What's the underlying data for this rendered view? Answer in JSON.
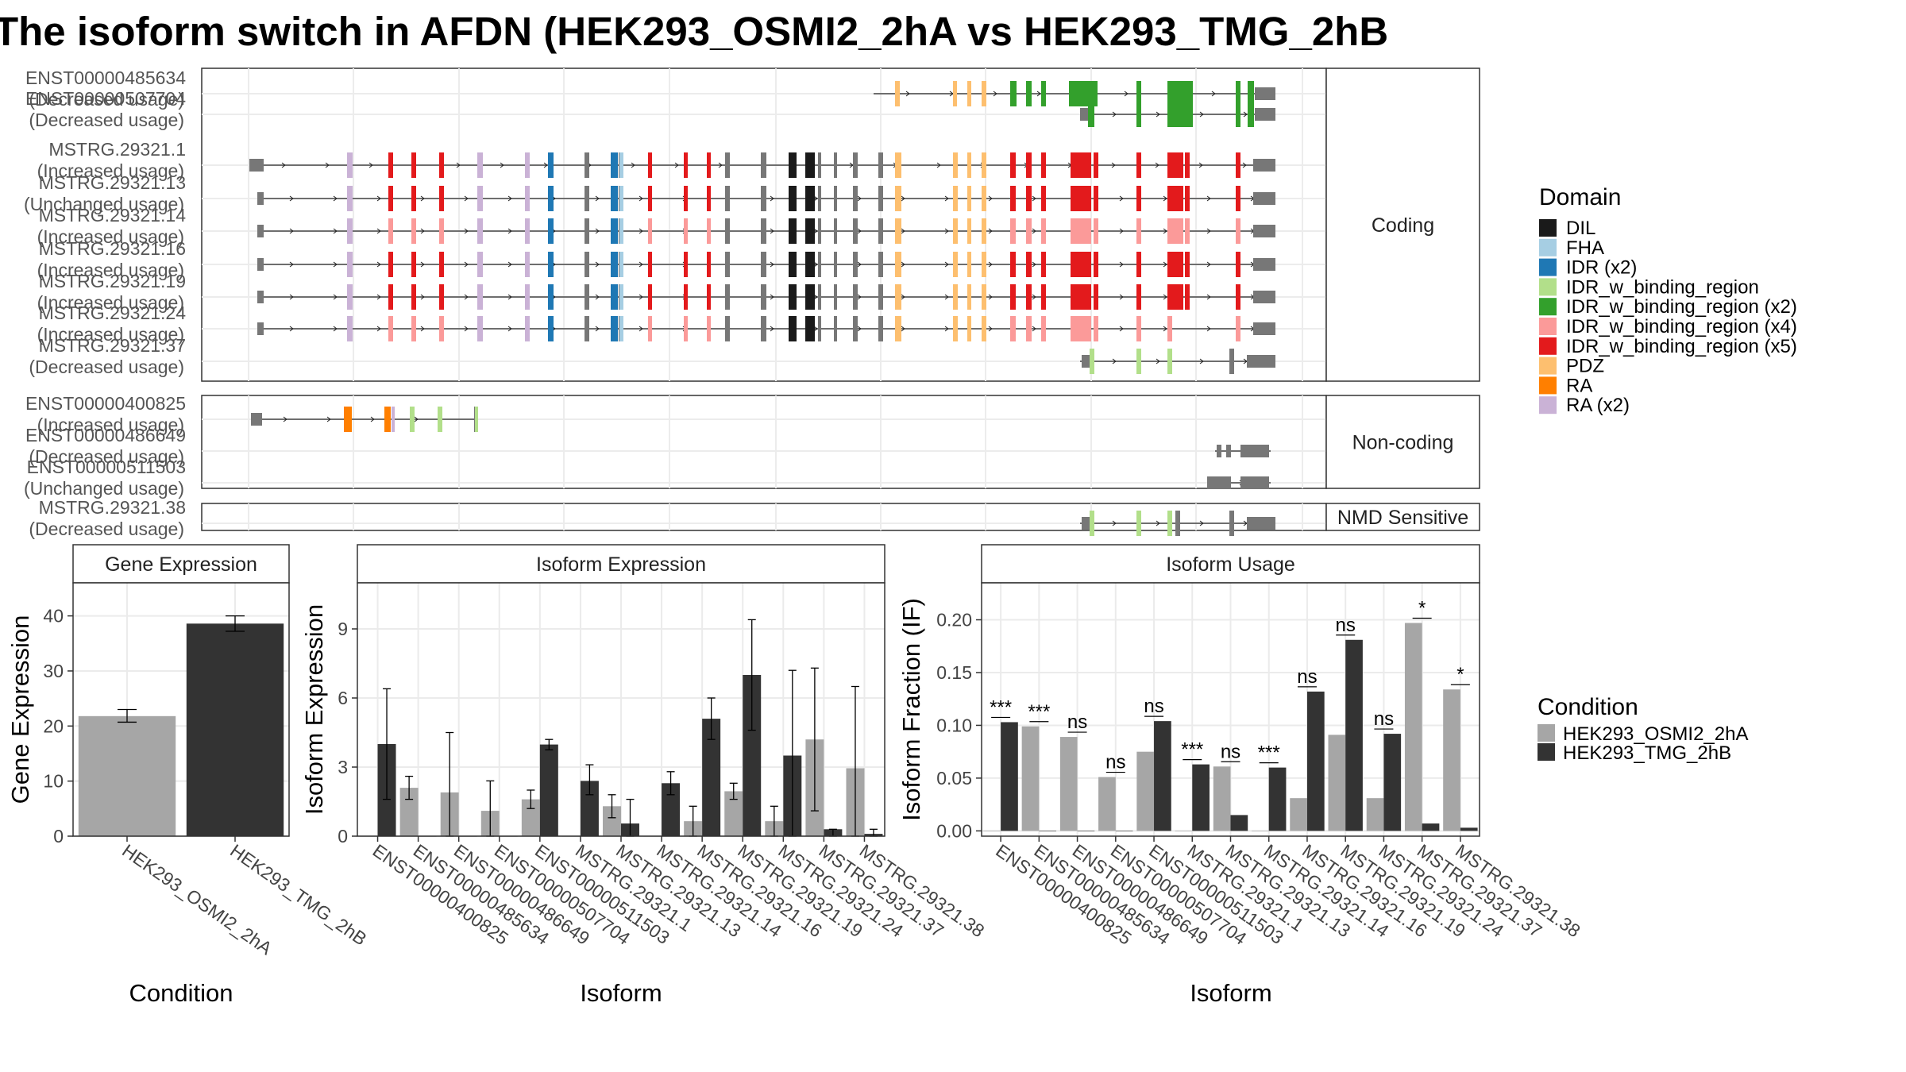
{
  "title": "The isoform switch in AFDN (HEK293_OSMI2_2hA vs HEK293_TMG_2hB",
  "colors": {
    "DIL": "#1a1a1a",
    "FHA": "#a6cee3",
    "IDR_x2": "#1f78b4",
    "IDRb": "#b2df8a",
    "IDRb_x2": "#33a02c",
    "IDRb_x4": "#fb9a99",
    "IDRb_x5": "#e31a1c",
    "PDZ": "#fdbf6f",
    "RA": "#ff7f00",
    "RA_x2": "#cab2d6",
    "other": "#777777",
    "cond_A": "#a6a6a6",
    "cond_B": "#333333"
  },
  "structure": {
    "panels": [
      {
        "label": "Coding",
        "isoforms": [
          {
            "name": "ENST00000485634",
            "usage": "(Decreased usage)"
          },
          {
            "name": "ENST00000507704",
            "usage": "(Decreased usage)"
          },
          {
            "name": "MSTRG.29321.1",
            "usage": "(Increased usage)"
          },
          {
            "name": "MSTRG.29321.13",
            "usage": "(Unchanged usage)"
          },
          {
            "name": "MSTRG.29321.14",
            "usage": "(Increased usage)"
          },
          {
            "name": "MSTRG.29321.16",
            "usage": "(Increased usage)"
          },
          {
            "name": "MSTRG.29321.19",
            "usage": "(Increased usage)"
          },
          {
            "name": "MSTRG.29321.24",
            "usage": "(Increased usage)"
          },
          {
            "name": "MSTRG.29321.37",
            "usage": "(Decreased usage)"
          }
        ]
      },
      {
        "label": "Non-coding",
        "isoforms": [
          {
            "name": "ENST00000400825",
            "usage": "(Increased usage)"
          },
          {
            "name": "ENST00000486649",
            "usage": "(Decreased usage)"
          },
          {
            "name": "ENST00000511503",
            "usage": "(Unchanged usage)"
          }
        ]
      },
      {
        "label": "NMD Sensitive",
        "isoforms": [
          {
            "name": "MSTRG.29321.38",
            "usage": "(Decreased usage)"
          }
        ]
      }
    ]
  },
  "legend_domain": {
    "title": "Domain",
    "items": [
      {
        "label": "DIL",
        "color": "#1a1a1a"
      },
      {
        "label": "FHA",
        "color": "#a6cee3"
      },
      {
        "label": "IDR (x2)",
        "color": "#1f78b4"
      },
      {
        "label": "IDR_w_binding_region",
        "color": "#b2df8a"
      },
      {
        "label": "IDR_w_binding_region (x2)",
        "color": "#33a02c"
      },
      {
        "label": "IDR_w_binding_region (x4)",
        "color": "#fb9a99"
      },
      {
        "label": "IDR_w_binding_region (x5)",
        "color": "#e31a1c"
      },
      {
        "label": "PDZ",
        "color": "#fdbf6f"
      },
      {
        "label": "RA",
        "color": "#ff7f00"
      },
      {
        "label": "RA (x2)",
        "color": "#cab2d6"
      }
    ]
  },
  "legend_condition": {
    "title": "Condition",
    "items": [
      {
        "label": "HEK293_OSMI2_2hA",
        "color": "#a6a6a6"
      },
      {
        "label": "HEK293_TMG_2hB",
        "color": "#333333"
      }
    ]
  },
  "chart_data": [
    {
      "type": "bar",
      "strip": "Gene Expression",
      "xlabel": "Condition",
      "ylabel": "Gene Expression",
      "ylim": [
        0,
        46
      ],
      "yticks": [
        "0",
        "10",
        "20",
        "30",
        "40"
      ],
      "categories": [
        "HEK293_OSMI2_2hA",
        "HEK293_TMG_2hB"
      ],
      "values": [
        21.8,
        38.6
      ],
      "errors": [
        [
          20.7,
          23.0
        ],
        [
          37.2,
          40.0
        ]
      ]
    },
    {
      "type": "bar",
      "strip": "Isoform Expression",
      "xlabel": "Isoform",
      "ylabel": "Isoform Expression",
      "ylim": [
        0,
        11
      ],
      "yticks": [
        "0",
        "3",
        "6",
        "9"
      ],
      "categories": [
        "ENST00000400825",
        "ENST00000485634",
        "ENST00000486649",
        "ENST00000507704",
        "ENST00000511503",
        "MSTRG.29321.1",
        "MSTRG.29321.13",
        "MSTRG.29321.14",
        "MSTRG.29321.16",
        "MSTRG.29321.19",
        "MSTRG.29321.24",
        "MSTRG.29321.37",
        "MSTRG.29321.38"
      ],
      "series": [
        {
          "name": "HEK293_OSMI2_2hA",
          "values": [
            0.0,
            2.1,
            1.9,
            1.1,
            1.6,
            0.0,
            1.3,
            0.0,
            0.65,
            1.95,
            0.65,
            4.2,
            2.95
          ],
          "errors": [
            [
              0,
              0
            ],
            [
              1.6,
              2.6
            ],
            [
              0,
              4.5
            ],
            [
              0,
              2.4
            ],
            [
              1.2,
              2.0
            ],
            [
              0,
              0
            ],
            [
              0.8,
              1.8
            ],
            [
              0,
              0
            ],
            [
              0,
              1.3
            ],
            [
              1.6,
              2.3
            ],
            [
              0,
              1.3
            ],
            [
              1.1,
              7.3
            ],
            [
              0,
              6.5
            ]
          ]
        },
        {
          "name": "HEK293_TMG_2hB",
          "values": [
            4.0,
            0.0,
            0.0,
            0.0,
            3.98,
            2.4,
            0.55,
            2.3,
            5.1,
            7.0,
            3.5,
            0.3,
            0.1
          ],
          "errors": [
            [
              1.6,
              6.4
            ],
            [
              0,
              0
            ],
            [
              0,
              0
            ],
            [
              0,
              0
            ],
            [
              3.75,
              4.2
            ],
            [
              1.8,
              3.1
            ],
            [
              0,
              1.6
            ],
            [
              1.8,
              2.8
            ],
            [
              4.2,
              6.0
            ],
            [
              4.6,
              9.4
            ],
            [
              0,
              7.2
            ],
            [
              0,
              0.3
            ],
            [
              0,
              0.3
            ]
          ]
        }
      ]
    },
    {
      "type": "bar",
      "strip": "Isoform Usage",
      "xlabel": "Isoform",
      "ylabel": "Isoform Fraction (IF)",
      "ylim": [
        -0.005,
        0.235
      ],
      "yticks": [
        "0.00",
        "0.05",
        "0.10",
        "0.15",
        "0.20"
      ],
      "categories": [
        "ENST00000400825",
        "ENST00000485634",
        "ENST00000486649",
        "ENST00000507704",
        "ENST00000511503",
        "MSTRG.29321.1",
        "MSTRG.29321.13",
        "MSTRG.29321.14",
        "MSTRG.29321.16",
        "MSTRG.29321.19",
        "MSTRG.29321.24",
        "MSTRG.29321.37",
        "MSTRG.29321.38"
      ],
      "series": [
        {
          "name": "HEK293_OSMI2_2hA",
          "values": [
            0.0,
            0.099,
            0.089,
            0.051,
            0.075,
            0.0,
            0.061,
            0.0,
            0.031,
            0.091,
            0.031,
            0.197,
            0.134
          ]
        },
        {
          "name": "HEK293_TMG_2hB",
          "values": [
            0.103,
            0.0,
            0.0,
            0.0,
            0.104,
            0.063,
            0.015,
            0.06,
            0.132,
            0.181,
            0.092,
            0.007,
            0.003
          ]
        }
      ],
      "significance": [
        "***",
        "***",
        "ns",
        "ns",
        "ns",
        "***",
        "ns",
        "***",
        "ns",
        "ns",
        "ns",
        "*",
        "*"
      ]
    }
  ]
}
